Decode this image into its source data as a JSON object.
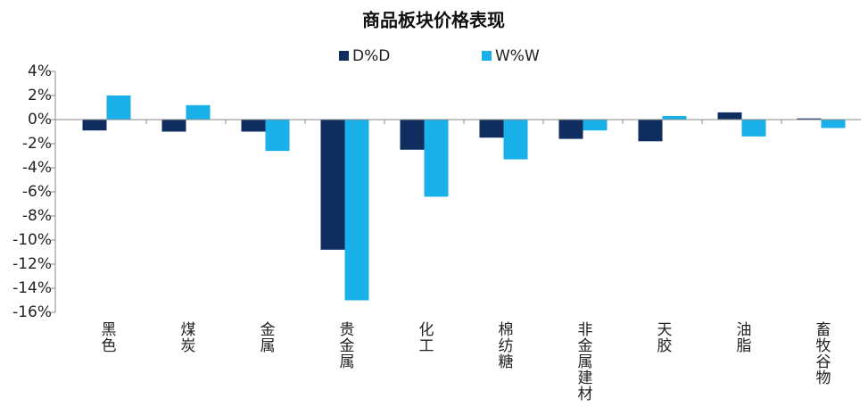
{
  "chart_data": {
    "type": "bar",
    "title": "商品板块价格表现",
    "categories": [
      "黑色",
      "煤炭",
      "金属",
      "贵金属",
      "化工",
      "棉纺糖",
      "非金属建材",
      "天胶",
      "油脂",
      "畜牧谷物"
    ],
    "series": [
      {
        "name": "D%D",
        "color": "#0f2d5e",
        "values": [
          -0.9,
          -1.0,
          -1.0,
          -10.8,
          -2.5,
          -1.5,
          -1.6,
          -1.8,
          0.6,
          0.1
        ]
      },
      {
        "name": "W%W",
        "color": "#1ab0ea",
        "values": [
          2.0,
          1.2,
          -2.6,
          -15.0,
          -6.4,
          -3.3,
          -0.9,
          0.3,
          -1.4,
          -0.7
        ]
      }
    ],
    "ylim": [
      -16,
      4
    ],
    "yticks": [
      {
        "value": 4,
        "label": "4%"
      },
      {
        "value": 2,
        "label": "2%"
      },
      {
        "value": 0,
        "label": "0%"
      },
      {
        "value": -2,
        "label": "-2%"
      },
      {
        "value": -4,
        "label": "-4%"
      },
      {
        "value": -6,
        "label": "-6%"
      },
      {
        "value": -8,
        "label": "-8%"
      },
      {
        "value": -10,
        "label": "-10%"
      },
      {
        "value": -12,
        "label": "-12%"
      },
      {
        "value": -14,
        "label": "-14%"
      },
      {
        "value": -16,
        "label": "-16%"
      }
    ],
    "legend": "top"
  }
}
